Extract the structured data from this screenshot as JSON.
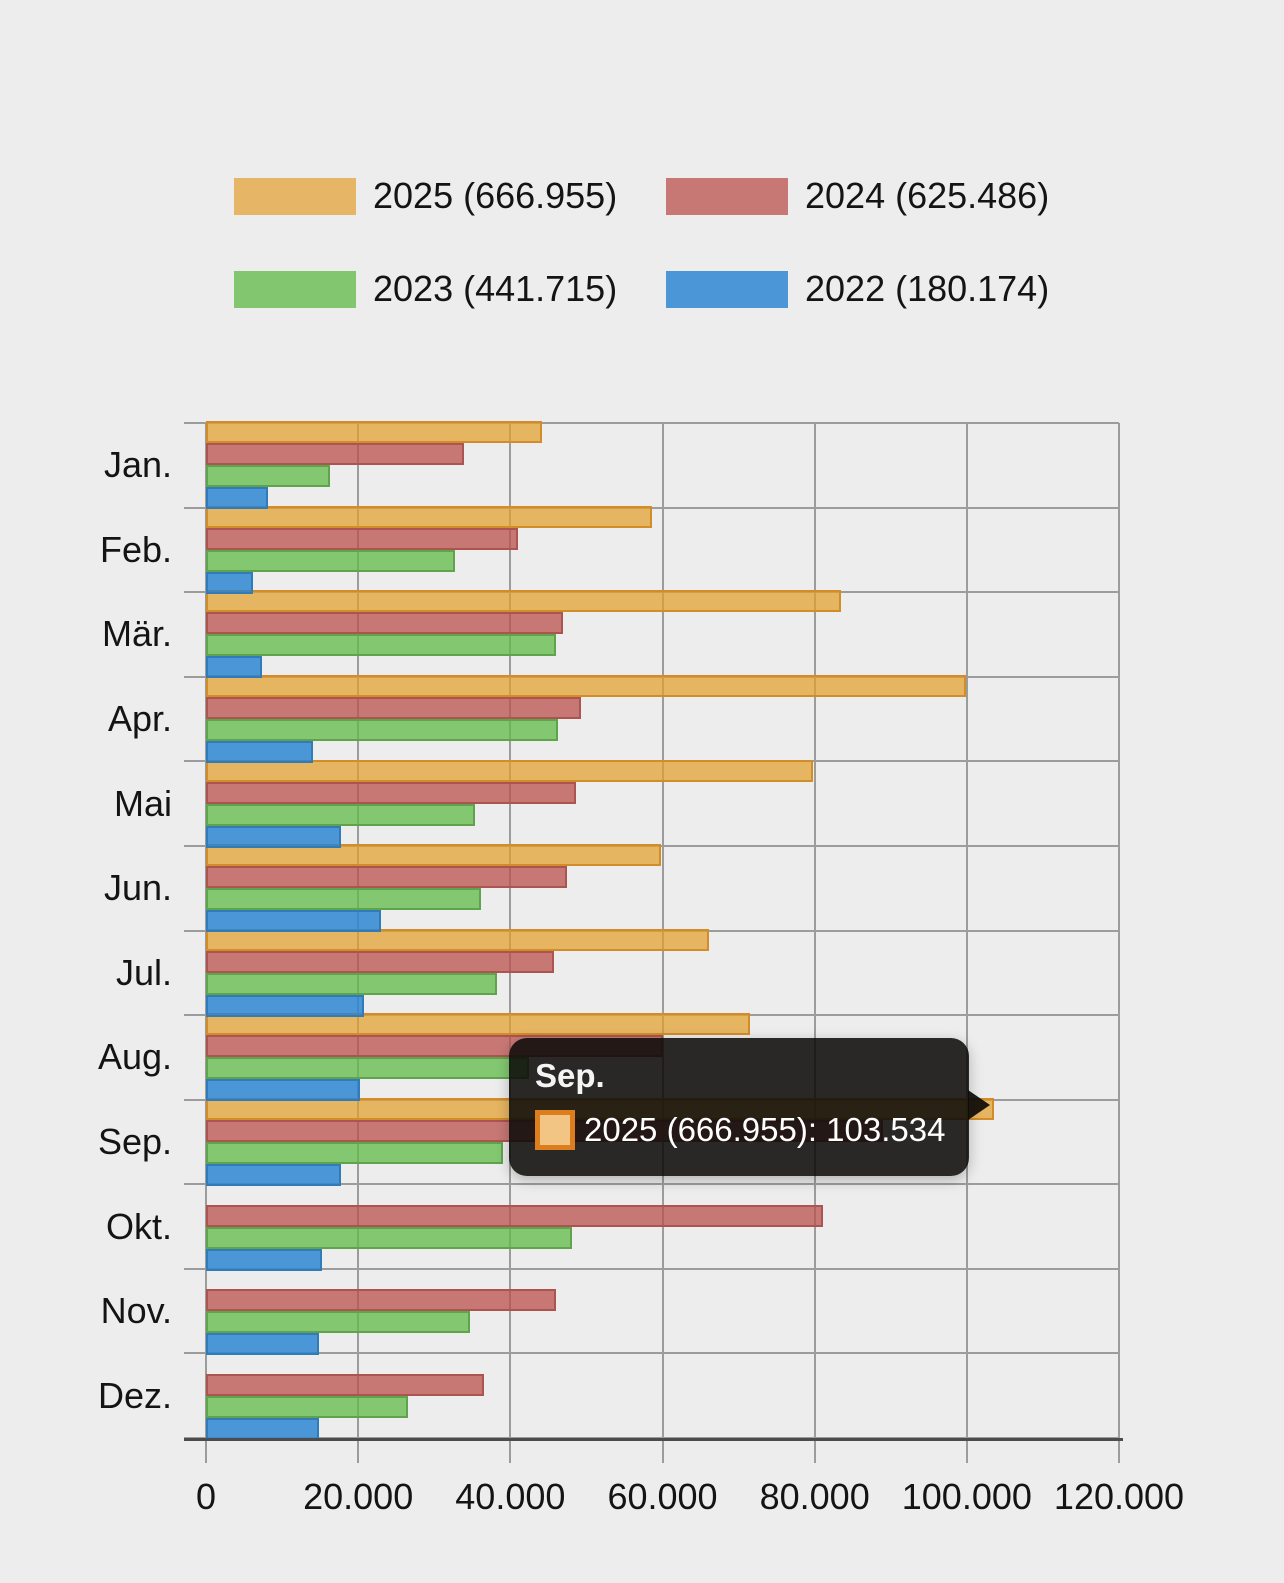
{
  "page": {
    "background": "#EDEDED"
  },
  "legend": {
    "items": [
      {
        "label": "2025 (666.955)",
        "color": "#E6B566",
        "border": "#D28C28"
      },
      {
        "label": "2024 (625.486)",
        "color": "#C77774",
        "border": "#AC5450"
      },
      {
        "label": "2023 (441.715)",
        "color": "#82C770",
        "border": "#5FA34C"
      },
      {
        "label": "2022 (180.174)",
        "color": "#4A96D7",
        "border": "#2F7CB8"
      }
    ]
  },
  "chart_data": {
    "type": "bar",
    "orientation": "horizontal",
    "categories": [
      "Jan.",
      "Feb.",
      "Mär.",
      "Apr.",
      "Mai",
      "Jun.",
      "Jul.",
      "Aug.",
      "Sep.",
      "Okt.",
      "Nov.",
      "Dez."
    ],
    "series": [
      {
        "name": "2025 (666.955)",
        "year": "2025",
        "total": 666955,
        "fill": "rgba(227,160,45,0.72)",
        "border": "#D28C28",
        "values": [
          44221,
          58600,
          83500,
          99900,
          79800,
          59800,
          66100,
          71500,
          103534,
          null,
          null,
          null
        ]
      },
      {
        "name": "2024 (625.486)",
        "year": "2024",
        "total": 625486,
        "fill": "rgba(186,80,76,0.75)",
        "border": "#AC5450",
        "values": [
          33900,
          41000,
          46900,
          49300,
          48600,
          47400,
          45800,
          60000,
          88986,
          81100,
          46000,
          36500
        ]
      },
      {
        "name": "2023 (441.715)",
        "year": "2023",
        "total": 441715,
        "fill": "rgba(97,188,73,0.76)",
        "border": "#5FA34C",
        "values": [
          16300,
          32700,
          46000,
          46300,
          35300,
          36100,
          38200,
          42415,
          39100,
          48100,
          34700,
          26500
        ]
      },
      {
        "name": "2022 (180.174)",
        "year": "2022",
        "total": 180174,
        "fill": "rgba(43,134,211,0.84)",
        "border": "#2F7CB8",
        "values": [
          8100,
          6200,
          7300,
          14000,
          17800,
          23000,
          20800,
          20200,
          17774,
          15200,
          14900,
          14900
        ]
      }
    ],
    "xlim": [
      0,
      120000
    ],
    "x_tick_labels": [
      "0",
      "20.000",
      "40.000",
      "60.000",
      "80.000",
      "100.000",
      "120.000"
    ],
    "grid": true,
    "legend_position": "top"
  },
  "tooltip": {
    "title": "Sep.",
    "line": "2025 (666.955): 103.534",
    "swatch_fill": "#F2C584",
    "swatch_border": "#DD7E1E"
  }
}
